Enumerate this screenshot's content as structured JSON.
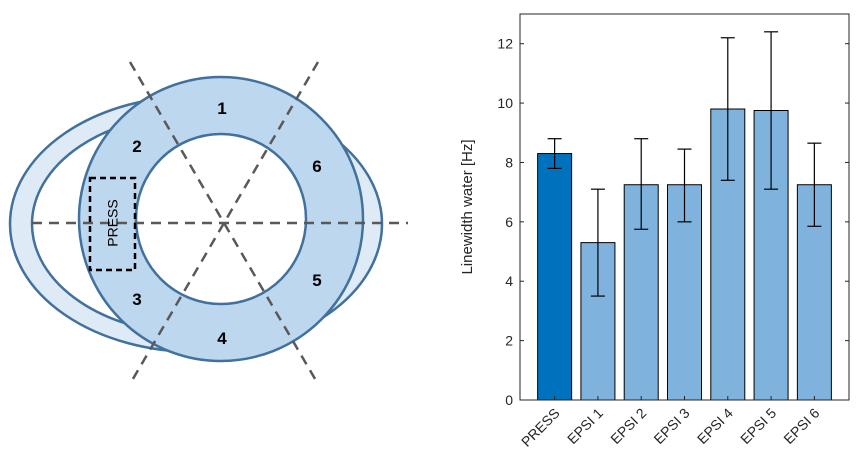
{
  "diagram": {
    "segment_labels": [
      "1",
      "2",
      "3",
      "4",
      "5",
      "6"
    ],
    "voxel_label": "PRESS",
    "colors": {
      "ring_fill": "#bdd7ee",
      "outer_crescent_fill": "#deebf7",
      "outline": "#41719c",
      "dashed_lines": "#595959"
    }
  },
  "chart_data": {
    "type": "bar",
    "categories": [
      "PRESS",
      "EPSI 1",
      "EPSI 2",
      "EPSI 3",
      "EPSI 4",
      "EPSI 5",
      "EPSI 6"
    ],
    "values": [
      8.3,
      5.3,
      7.25,
      7.25,
      9.8,
      9.75,
      7.25
    ],
    "error_low": [
      7.8,
      3.5,
      5.75,
      6.0,
      7.4,
      7.1,
      5.85
    ],
    "error_high": [
      8.8,
      7.1,
      8.8,
      8.45,
      12.2,
      12.4,
      8.65
    ],
    "bar_colors": [
      "#0072bd",
      "#7fb3dd",
      "#7fb3dd",
      "#7fb3dd",
      "#7fb3dd",
      "#7fb3dd",
      "#7fb3dd"
    ],
    "ylabel": "Linewidth water [Hz]",
    "xlabel": "",
    "ylim": [
      0,
      13
    ],
    "yticks": [
      "0",
      "2",
      "4",
      "6",
      "8",
      "10",
      "12"
    ],
    "grid": false
  }
}
